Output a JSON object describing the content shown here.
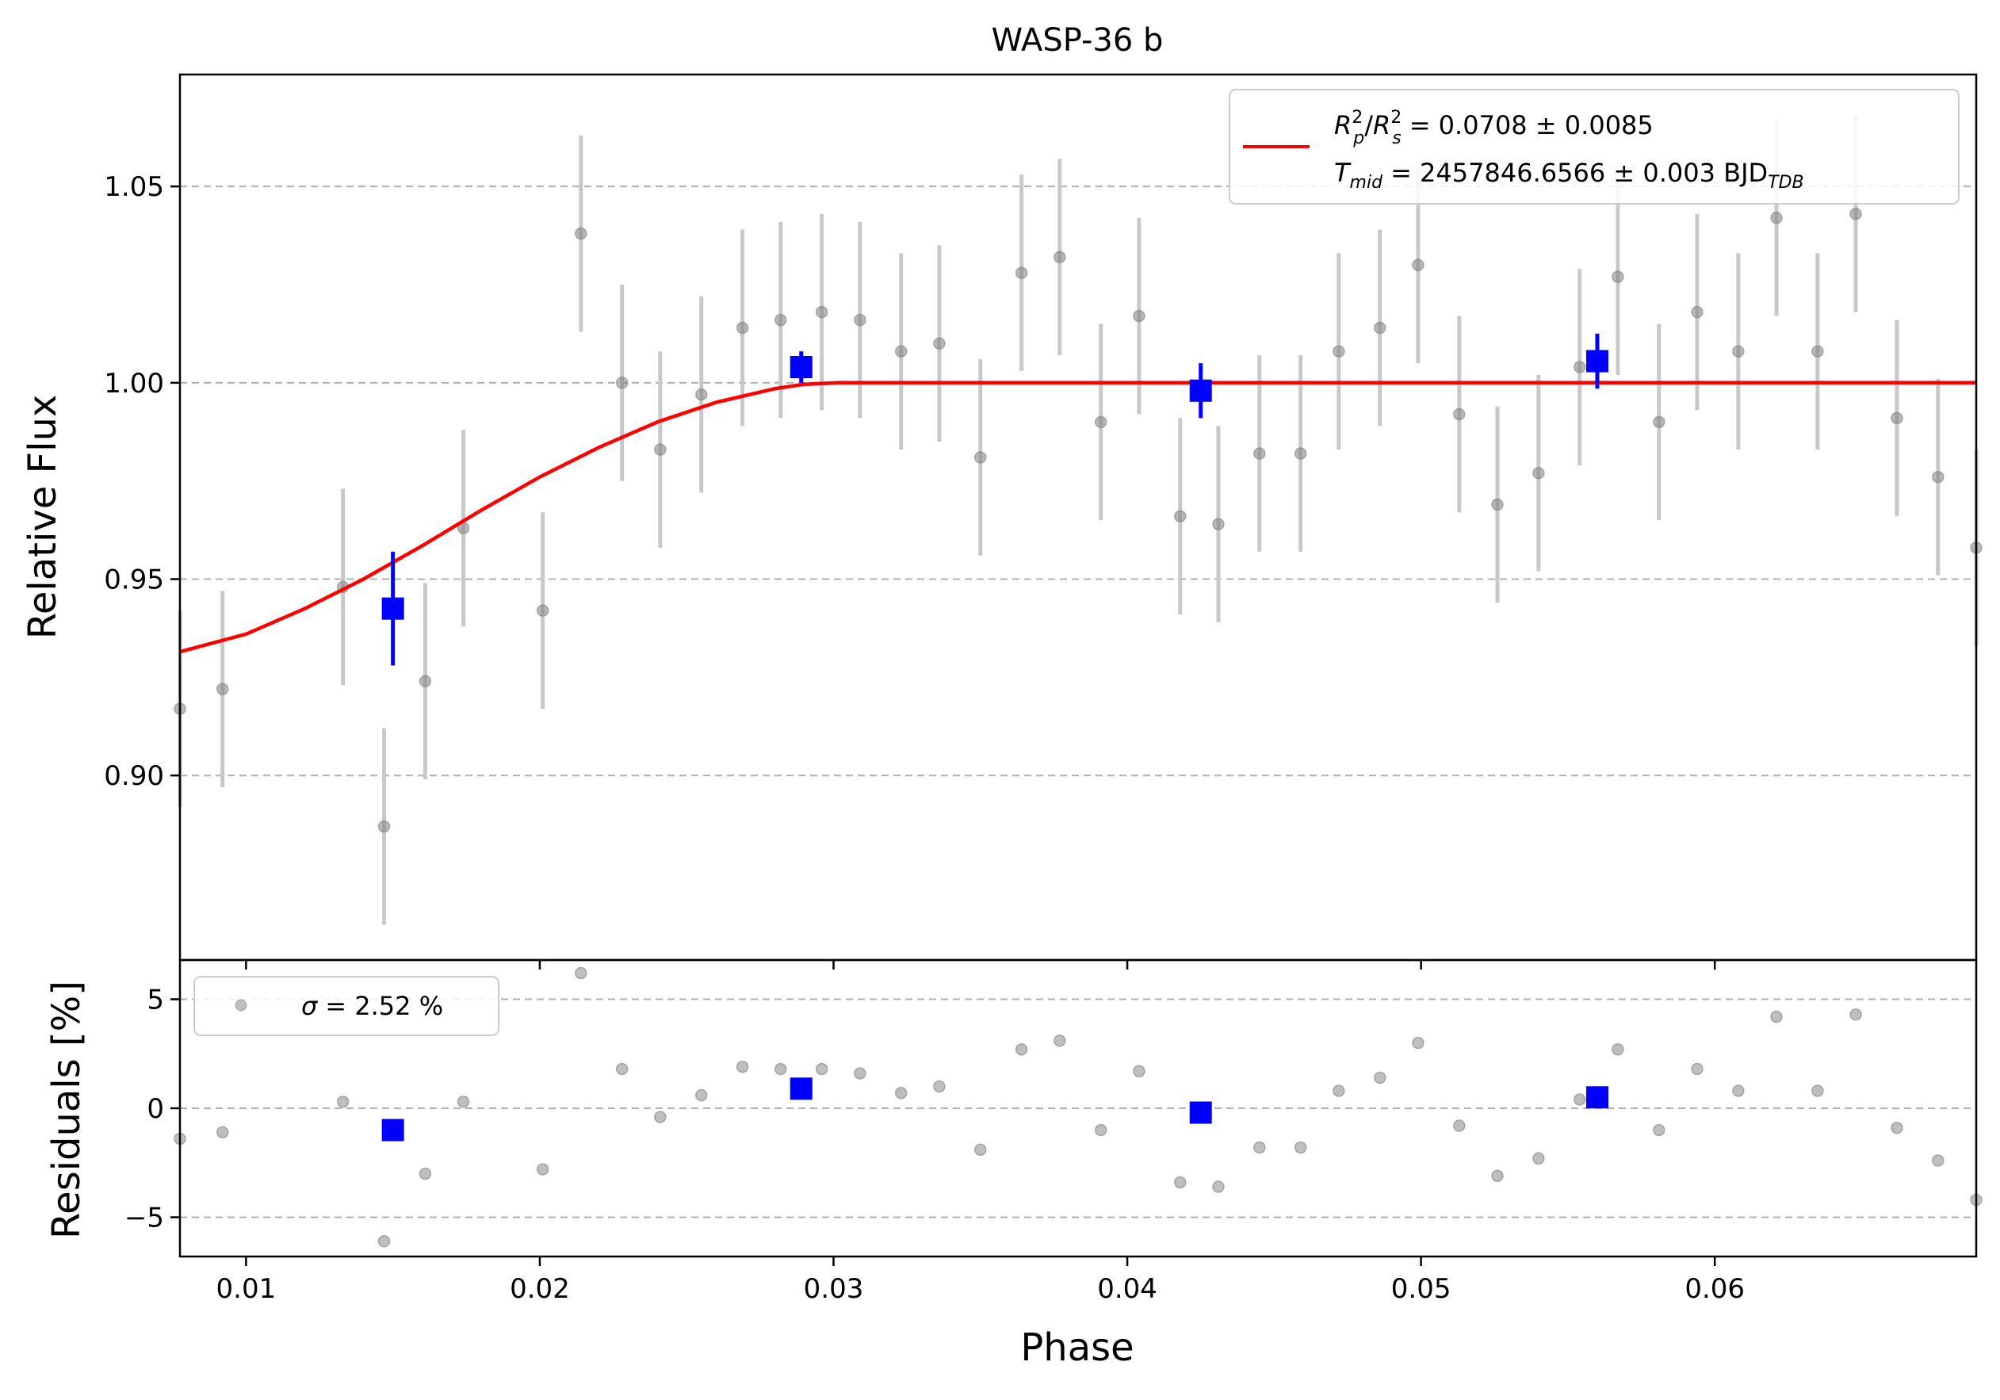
{
  "chart_data": [
    {
      "type": "scatter",
      "title": "WASP-36 b",
      "xlabel": "Phase",
      "ylabel": "Relative Flux",
      "xlim": [
        0.00775,
        0.0689
      ],
      "ylim": [
        0.853,
        1.0785
      ],
      "xticks": [
        0.01,
        0.02,
        0.03,
        0.04,
        0.05,
        0.06
      ],
      "xtick_labels": [
        "0.01",
        "0.02",
        "0.03",
        "0.04",
        "0.05",
        "0.06"
      ],
      "yticks": [
        0.9,
        0.95,
        1.0,
        1.05
      ],
      "ytick_labels": [
        "0.90",
        "0.95",
        "1.00",
        "1.05"
      ],
      "grid": "horizontal dashed",
      "legend": {
        "placement": "top-right",
        "line_label_1": "= 0.0708 ± 0.0085",
        "line_label_2": "= 2457846.6566 ± 0.003 BJD",
        "rp_text": "R",
        "rs_text": "R",
        "sup_text": "2",
        "sub_p": "p",
        "sub_s": "s",
        "tmid_T": "T",
        "tmid_sub": "mid",
        "tdb_sub": "TDB",
        "slash": "/"
      },
      "colors": {
        "data": "#808080",
        "errorbar": "#c8c8c8",
        "binned": "#0000ff",
        "model": "#ff0000",
        "grid": "#b0b0b0"
      },
      "series": [
        {
          "kind": "data",
          "x": [
            0.00775,
            0.0092,
            0.0133,
            0.0147,
            0.0161,
            0.0174,
            0.0201,
            0.0214,
            0.0228,
            0.0241,
            0.0255,
            0.0269,
            0.0282,
            0.0296,
            0.0309,
            0.0323,
            0.0336,
            0.035,
            0.0364,
            0.0377,
            0.0391,
            0.0404,
            0.0418,
            0.0431,
            0.0445,
            0.0459,
            0.0472,
            0.0486,
            0.0499,
            0.0513,
            0.0526,
            0.054,
            0.0554,
            0.0567,
            0.0581,
            0.0594,
            0.0608,
            0.0621,
            0.0635,
            0.0648,
            0.0662,
            0.0676,
            0.0689
          ],
          "y": [
            0.917,
            0.922,
            0.948,
            0.887,
            0.924,
            0.963,
            0.942,
            1.038,
            1.0,
            0.983,
            0.997,
            1.014,
            1.016,
            1.018,
            1.016,
            1.008,
            1.01,
            0.981,
            1.028,
            1.032,
            0.99,
            1.017,
            0.966,
            0.964,
            0.982,
            0.982,
            1.008,
            1.014,
            1.03,
            0.992,
            0.969,
            0.977,
            1.004,
            1.027,
            0.99,
            1.018,
            1.008,
            1.042,
            1.008,
            1.043,
            0.991,
            0.976,
            0.958
          ],
          "yerr": 0.025
        },
        {
          "kind": "binned",
          "x": [
            0.015,
            0.0289,
            0.0425,
            0.056
          ],
          "y": [
            0.9425,
            1.004,
            0.998,
            1.0055
          ],
          "yerr": [
            0.0145,
            0.004,
            0.007,
            0.007
          ]
        },
        {
          "kind": "model",
          "x": [
            0.00775,
            0.01,
            0.012,
            0.014,
            0.016,
            0.018,
            0.02,
            0.022,
            0.024,
            0.026,
            0.028,
            0.029,
            0.0302,
            0.035,
            0.04,
            0.045,
            0.05,
            0.055,
            0.06,
            0.065,
            0.0689
          ],
          "y": [
            0.9315,
            0.936,
            0.9425,
            0.95,
            0.9585,
            0.9675,
            0.976,
            0.9835,
            0.99,
            0.995,
            0.9985,
            0.9996,
            1.0,
            1.0,
            1.0,
            1.0,
            1.0,
            1.0,
            1.0,
            1.0,
            1.0
          ]
        }
      ]
    },
    {
      "type": "scatter",
      "ylabel": "Residuals [%]",
      "xlabel": "Phase",
      "xlim": [
        0.00775,
        0.0689
      ],
      "ylim": [
        -6.8,
        6.8
      ],
      "yticks": [
        -5,
        0,
        5
      ],
      "ytick_labels": [
        "−5",
        "0",
        "5"
      ],
      "grid": "horizontal dashed",
      "legend": {
        "placement": "top-left",
        "label_sigma": "σ",
        "label_rest": "= 2.52 %"
      },
      "series": [
        {
          "kind": "residuals",
          "x": [
            0.00775,
            0.0092,
            0.0133,
            0.0147,
            0.0161,
            0.0174,
            0.0201,
            0.0214,
            0.0228,
            0.0241,
            0.0255,
            0.0269,
            0.0282,
            0.0296,
            0.0309,
            0.0323,
            0.0336,
            0.035,
            0.0364,
            0.0377,
            0.0391,
            0.0404,
            0.0418,
            0.0431,
            0.0445,
            0.0459,
            0.0472,
            0.0486,
            0.0499,
            0.0513,
            0.0526,
            0.054,
            0.0554,
            0.0567,
            0.0581,
            0.0594,
            0.0608,
            0.0621,
            0.0635,
            0.0648,
            0.0662,
            0.0676,
            0.0689
          ],
          "y": [
            -1.4,
            -1.1,
            0.3,
            -6.1,
            -3.0,
            0.3,
            -2.8,
            6.2,
            1.8,
            -0.4,
            0.6,
            1.9,
            1.8,
            1.8,
            1.6,
            0.7,
            1.0,
            -1.9,
            2.7,
            3.1,
            -1.0,
            1.7,
            -3.4,
            -3.6,
            -1.8,
            -1.8,
            0.8,
            1.4,
            3.0,
            -0.8,
            -3.1,
            -2.3,
            0.4,
            2.7,
            -1.0,
            1.8,
            0.8,
            4.2,
            0.8,
            4.3,
            -0.9,
            -2.4,
            -4.2
          ]
        },
        {
          "kind": "binned",
          "x": [
            0.015,
            0.0289,
            0.0425,
            0.056
          ],
          "y": [
            -1.0,
            0.9,
            -0.2,
            0.5
          ]
        }
      ]
    }
  ]
}
